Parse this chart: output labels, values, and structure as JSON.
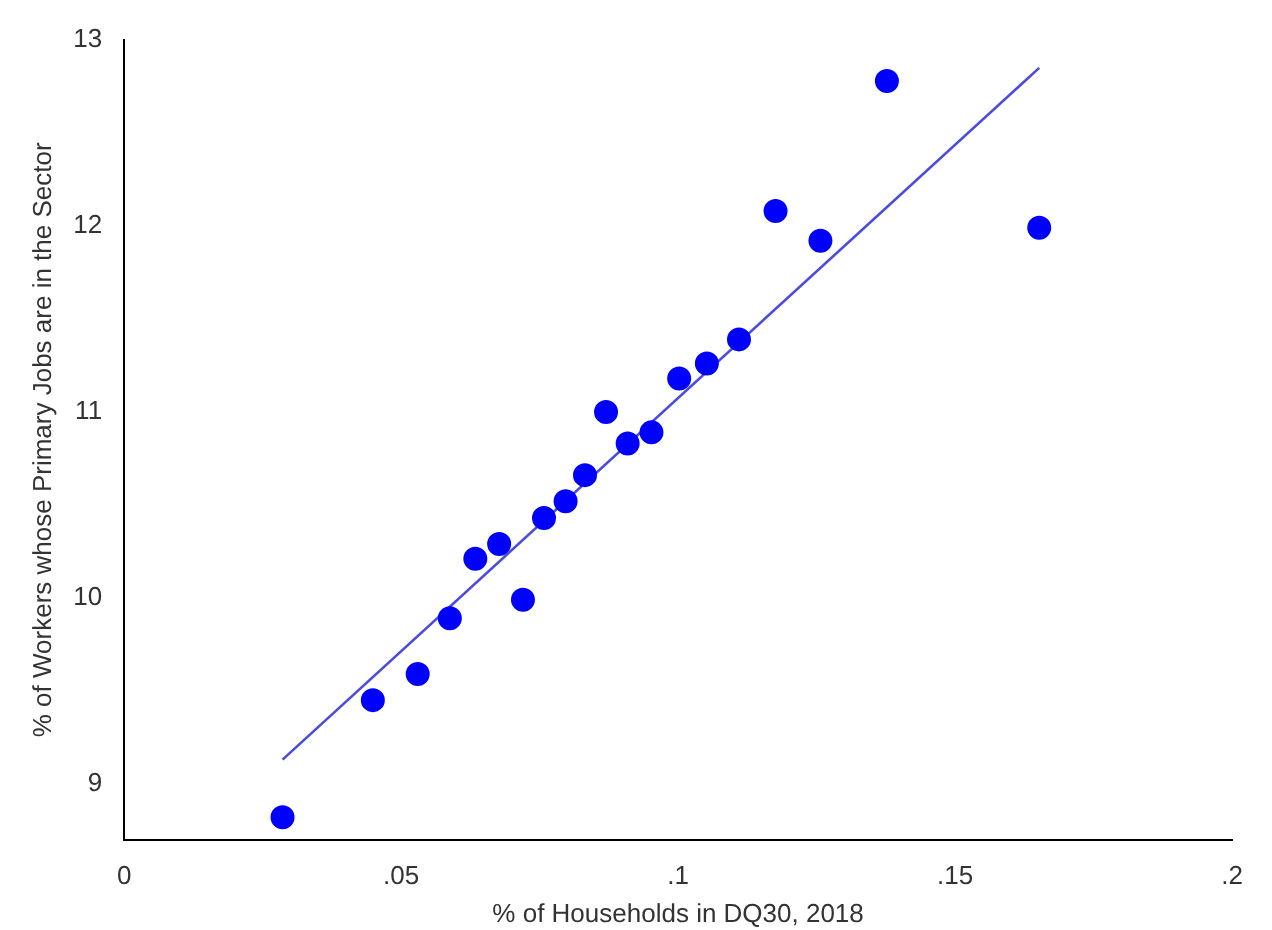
{
  "chart_data": {
    "type": "scatter",
    "xlabel": "% of Households in DQ30, 2018",
    "ylabel": "% of Workers whose Primary Jobs are in the Sector",
    "xlim": [
      0,
      0.2
    ],
    "xticks": [
      0,
      {
        "value": 0.05,
        "label": ".05"
      },
      {
        "value": 0.1,
        "label": ".1"
      },
      {
        "value": 0.15,
        "label": ".15"
      },
      {
        "value": 0.2,
        "label": ".2"
      }
    ],
    "ylim": [
      8.7,
      13
    ],
    "yticks": [
      9,
      10,
      11,
      12,
      13
    ],
    "grid": false,
    "legend": false,
    "marker": "circle",
    "series": [
      {
        "type": "scatter",
        "color": "#0000ff",
        "x": [
          0.0286,
          0.0449,
          0.053,
          0.0588,
          0.0634,
          0.0677,
          0.072,
          0.0758,
          0.0797,
          0.0832,
          0.087,
          0.0909,
          0.0952,
          0.1002,
          0.1052,
          0.111,
          0.1176,
          0.1257,
          0.1377,
          0.1652
        ],
        "values": [
          8.82,
          9.45,
          9.59,
          9.89,
          10.21,
          10.29,
          9.99,
          10.43,
          10.52,
          10.66,
          11.0,
          10.83,
          10.89,
          11.18,
          11.26,
          11.39,
          12.08,
          11.92,
          12.78,
          11.99
        ]
      },
      {
        "type": "line",
        "color": "#4c4cdc",
        "marker": "none",
        "x": [
          0.0286,
          0.1652
        ],
        "values": [
          9.13,
          12.85
        ]
      }
    ]
  }
}
